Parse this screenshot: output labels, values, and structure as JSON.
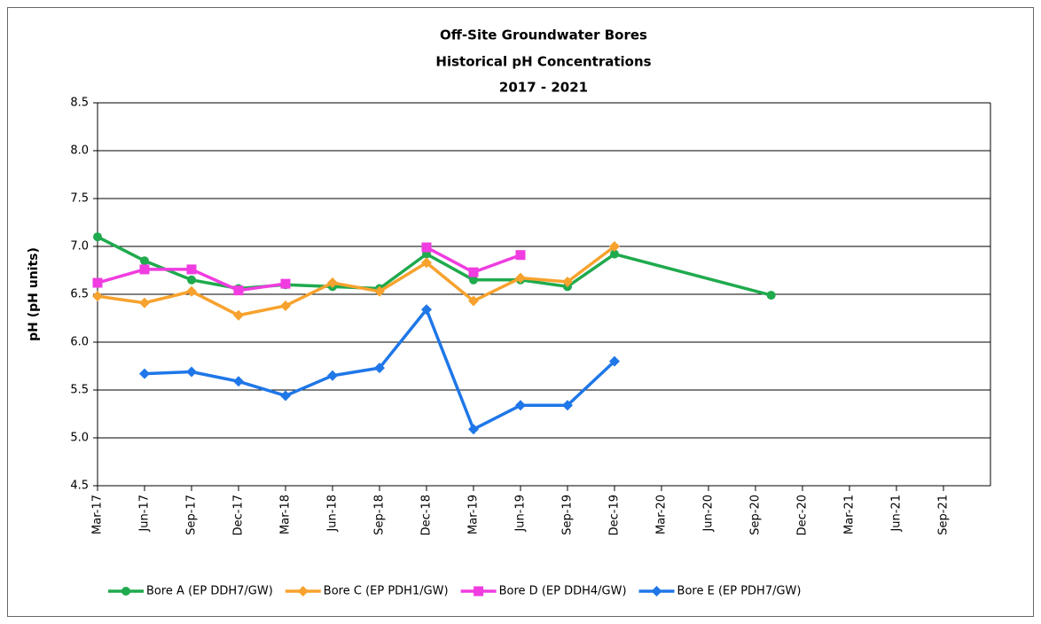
{
  "chart_data": {
    "type": "line",
    "title": [
      "Off-Site Groundwater Bores",
      "Historical pH Concentrations",
      "2017 - 2021"
    ],
    "y_label": "pH (pH units)",
    "x": [
      "2017-03",
      "2017-06",
      "2017-09",
      "2017-12",
      "2018-03",
      "2018-06",
      "2018-09",
      "2018-12",
      "2019-03",
      "2019-06",
      "2019-09",
      "2019-12",
      "2020-10"
    ],
    "xlim": [
      "2017-03",
      "2021-12"
    ],
    "xticks": [
      {
        "value": "2017-03",
        "label": "Mar-17"
      },
      {
        "value": "2017-06",
        "label": "Jun-17"
      },
      {
        "value": "2017-09",
        "label": "Sep-17"
      },
      {
        "value": "2017-12",
        "label": "Dec-17"
      },
      {
        "value": "2018-03",
        "label": "Mar-18"
      },
      {
        "value": "2018-06",
        "label": "Jun-18"
      },
      {
        "value": "2018-09",
        "label": "Sep-18"
      },
      {
        "value": "2018-12",
        "label": "Dec-18"
      },
      {
        "value": "2019-03",
        "label": "Mar-19"
      },
      {
        "value": "2019-06",
        "label": "Jun-19"
      },
      {
        "value": "2019-09",
        "label": "Sep-19"
      },
      {
        "value": "2019-12",
        "label": "Dec-19"
      },
      {
        "value": "2020-03",
        "label": "Mar-20"
      },
      {
        "value": "2020-06",
        "label": "Jun-20"
      },
      {
        "value": "2020-09",
        "label": "Sep-20"
      },
      {
        "value": "2020-12",
        "label": "Dec-20"
      },
      {
        "value": "2021-03",
        "label": "Mar-21"
      },
      {
        "value": "2021-06",
        "label": "Jun-21"
      },
      {
        "value": "2021-09",
        "label": "Sep-21"
      }
    ],
    "ylim": [
      4.5,
      8.5
    ],
    "yticks": [
      4.5,
      {
        "value": 5,
        "label": "5.0"
      },
      5.5,
      {
        "value": 6,
        "label": "6.0"
      },
      6.5,
      {
        "value": 7,
        "label": "7.0"
      },
      7.5,
      {
        "value": 8,
        "label": "8.0"
      },
      8.5
    ],
    "grid": true,
    "legend": "bottom",
    "series": [
      {
        "name": "Bore A (EP DDH7/GW)",
        "color": "#1faa4d",
        "marker": "circle",
        "values": [
          7.1,
          6.85,
          6.65,
          6.56,
          6.6,
          6.58,
          6.56,
          6.92,
          6.65,
          6.65,
          6.58,
          6.92,
          6.49
        ]
      },
      {
        "name": "Bore C (EP PDH1/GW)",
        "color": "#f7a22e",
        "marker": "diamond",
        "values": [
          6.48,
          6.41,
          6.53,
          6.28,
          6.38,
          6.62,
          6.53,
          6.83,
          6.43,
          6.67,
          6.63,
          7.0,
          null
        ]
      },
      {
        "name": "Bore D (EP DDH4/GW)",
        "color": "#f03ce0",
        "marker": "square",
        "values": [
          6.62,
          6.76,
          6.76,
          6.54,
          6.61,
          null,
          null,
          6.99,
          6.73,
          6.91,
          null,
          null,
          null
        ]
      },
      {
        "name": "Bore E (EP PDH7/GW)",
        "color": "#1f77e8",
        "marker": "diamond",
        "values": [
          null,
          5.67,
          5.69,
          5.59,
          5.44,
          5.65,
          5.73,
          6.34,
          5.09,
          5.34,
          5.34,
          5.8,
          null
        ]
      }
    ]
  }
}
